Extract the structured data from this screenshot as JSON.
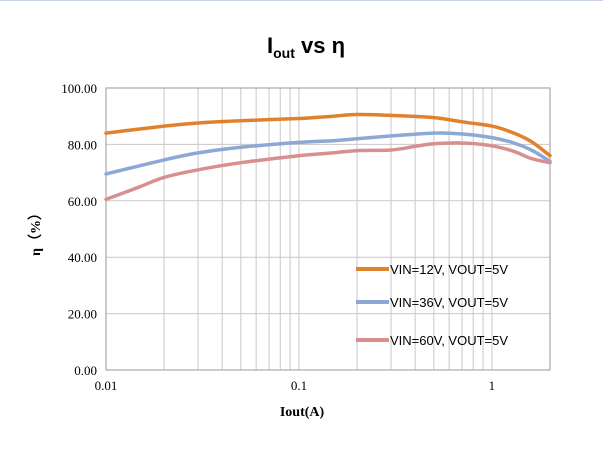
{
  "chart_data": {
    "type": "line",
    "title": {
      "base": "I",
      "sub": "out",
      "rest": " vs η"
    },
    "xlabel": "Iout(A)",
    "ylabel": "η（%）",
    "x_scale": "log",
    "xlim": [
      0.01,
      2
    ],
    "ylim": [
      0,
      100
    ],
    "x_ticks": [
      {
        "value": 0.01,
        "label": "0.01"
      },
      {
        "value": 0.1,
        "label": "0.1"
      },
      {
        "value": 1,
        "label": "1"
      }
    ],
    "y_ticks": [
      {
        "value": 0,
        "label": "0.00"
      },
      {
        "value": 20,
        "label": "20.00"
      },
      {
        "value": 40,
        "label": "40.00"
      },
      {
        "value": 60,
        "label": "60.00"
      },
      {
        "value": 80,
        "label": "80.00"
      },
      {
        "value": 100,
        "label": "100.00"
      }
    ],
    "grid": true,
    "legend_position": "right",
    "series": [
      {
        "name": "VIN=12V, VOUT=5V",
        "color": "#E0822C",
        "x": [
          0.01,
          0.02,
          0.03,
          0.05,
          0.1,
          0.15,
          0.2,
          0.3,
          0.5,
          0.7,
          1.0,
          1.3,
          1.6,
          2.0
        ],
        "y": [
          84.0,
          86.5,
          87.6,
          88.4,
          89.2,
          90.0,
          90.6,
          90.3,
          89.5,
          88.0,
          86.5,
          84.0,
          81.0,
          76.0
        ]
      },
      {
        "name": "VIN=36V, VOUT=5V",
        "color": "#8EA8D6",
        "x": [
          0.01,
          0.02,
          0.03,
          0.05,
          0.1,
          0.15,
          0.2,
          0.3,
          0.5,
          0.7,
          1.0,
          1.3,
          1.6,
          2.0
        ],
        "y": [
          69.5,
          74.5,
          77.0,
          79.0,
          80.7,
          81.3,
          82.0,
          83.0,
          84.0,
          83.7,
          82.4,
          80.5,
          78.0,
          74.0
        ]
      },
      {
        "name": "VIN=60V, VOUT=5V",
        "color": "#D98F8F",
        "x": [
          0.01,
          0.015,
          0.02,
          0.03,
          0.05,
          0.1,
          0.15,
          0.2,
          0.3,
          0.4,
          0.5,
          0.7,
          1.0,
          1.3,
          1.6,
          2.0
        ],
        "y": [
          60.5,
          65.0,
          68.3,
          71.0,
          73.5,
          76.0,
          77.0,
          77.8,
          78.0,
          79.3,
          80.2,
          80.5,
          79.5,
          77.5,
          75.0,
          73.5
        ]
      }
    ]
  }
}
